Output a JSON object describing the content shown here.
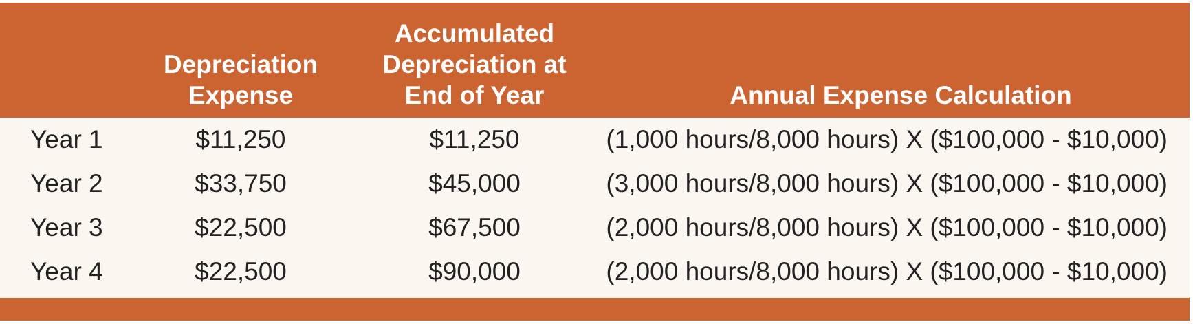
{
  "header": {
    "col_year": "",
    "col_depreciation_line1": "Depreciation",
    "col_depreciation_line2": "Expense",
    "col_accumulated_line1": "Accumulated",
    "col_accumulated_line2": "Depreciation at",
    "col_accumulated_line3": "End of Year",
    "col_calculation": "Annual Expense Calculation"
  },
  "rows": [
    {
      "year": "Year 1",
      "expense": "$11,250",
      "accumulated": "$11,250",
      "calculation": "(1,000 hours/8,000 hours) X ($100,000 - $10,000)"
    },
    {
      "year": "Year 2",
      "expense": "$33,750",
      "accumulated": "$45,000",
      "calculation": "(3,000 hours/8,000 hours) X ($100,000 - $10,000)"
    },
    {
      "year": "Year 3",
      "expense": "$22,500",
      "accumulated": "$67,500",
      "calculation": "(2,000 hours/8,000 hours) X ($100,000 - $10,000)"
    },
    {
      "year": "Year 4",
      "expense": "$22,500",
      "accumulated": "$90,000",
      "calculation": "(2,000 hours/8,000 hours) X ($100,000 - $10,000)"
    }
  ],
  "colors": {
    "header_background": "#cc6432",
    "body_background": "#fcf6f0",
    "header_text": "#ffffff",
    "body_text": "#222222"
  }
}
